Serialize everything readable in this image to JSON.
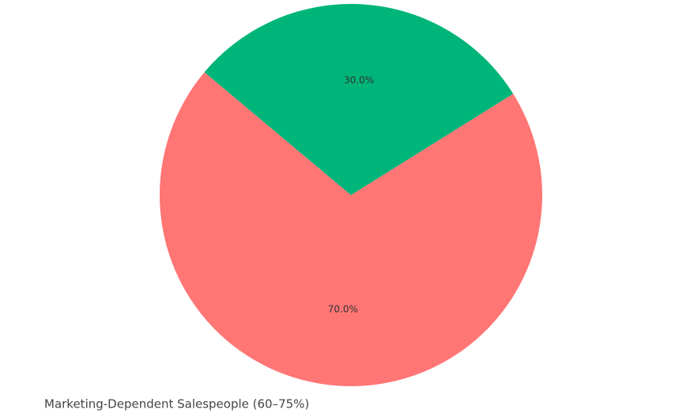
{
  "chart_data": {
    "type": "pie",
    "values": [
      70,
      30
    ],
    "value_labels": [
      "70.0%",
      "30.0%"
    ],
    "colors": [
      "#ff7675",
      "#00b57a"
    ],
    "startangle": 140,
    "caption": "Marketing-Dependent Salespeople (60–75%)"
  }
}
